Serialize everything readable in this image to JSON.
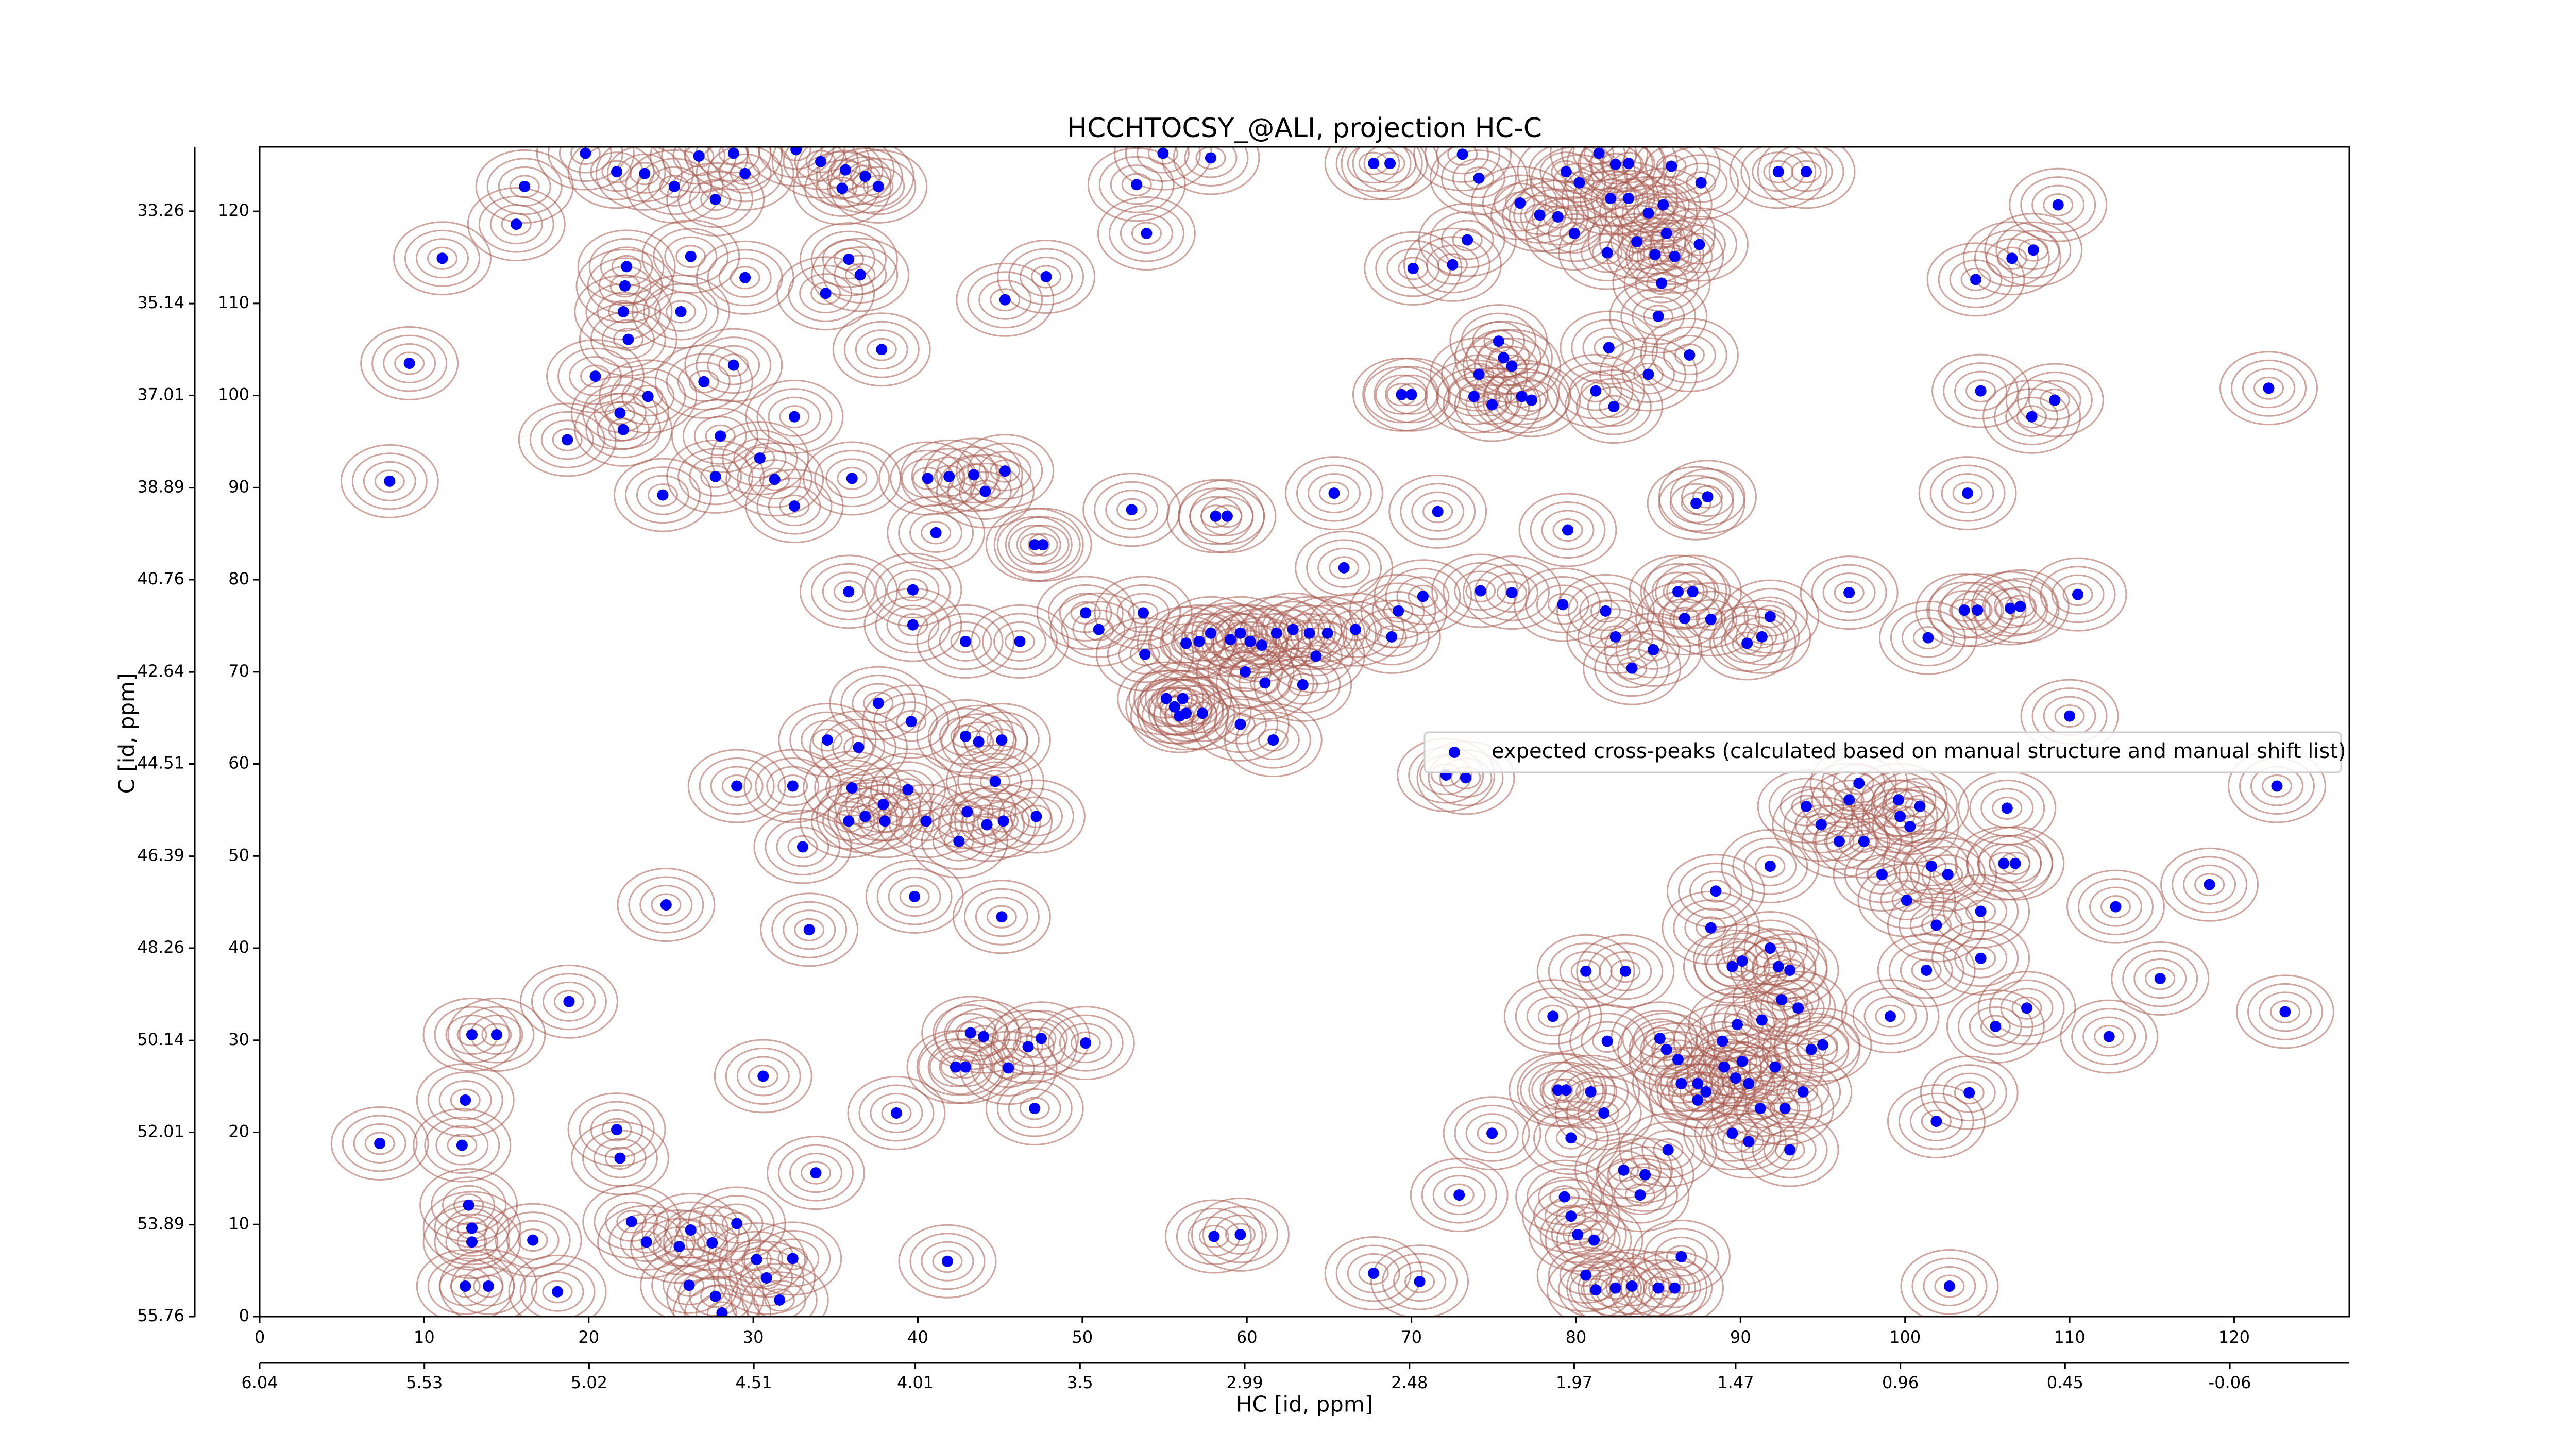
{
  "chart_data": {
    "type": "scatter",
    "title": "HCCHTOCSY_@ALI, projection HC-C",
    "xlabel": "HC [id, ppm]",
    "ylabel": "C [id, ppm]",
    "xlim": [
      0,
      127
    ],
    "ylim": [
      0,
      127
    ],
    "xticks": [
      0,
      10,
      20,
      30,
      40,
      50,
      60,
      70,
      80,
      90,
      100,
      110,
      120
    ],
    "yticks": [
      0,
      10,
      20,
      30,
      40,
      50,
      60,
      70,
      80,
      90,
      100,
      110,
      120
    ],
    "x2lim": [
      6.04,
      -0.43
    ],
    "x2ticks": [
      6.04,
      5.53,
      5.02,
      4.51,
      4.01,
      3.5,
      2.99,
      2.48,
      1.97,
      1.47,
      0.96,
      0.45,
      -0.06
    ],
    "y2lim": [
      55.76,
      31.95
    ],
    "y2ticks": [
      55.76,
      53.89,
      52.01,
      50.14,
      48.26,
      46.39,
      44.51,
      42.64,
      40.76,
      38.89,
      37.01,
      35.14,
      33.26
    ],
    "legend": "center right",
    "contour_color": "#a85a4e",
    "series": [
      {
        "name": "expected cross-peaks (calculated based on manual structure and manual shift list)",
        "color": "#0000ff",
        "x": [
          16.1,
          15.6,
          11.1,
          9.1,
          7.9,
          19.8,
          21.7,
          23.4,
          25.2,
          26.7,
          28.8,
          27.7,
          29.5,
          32.6,
          34.1,
          35.4,
          36.8,
          37.6,
          35.6,
          22.3,
          22.2,
          22.1,
          26.2,
          29.5,
          25.6,
          34.4,
          35.8,
          36.5,
          22.4,
          45.3,
          47.8,
          37.8,
          28.8,
          27.0,
          20.4,
          21.9,
          22.1,
          18.7,
          23.6,
          28.0,
          30.4,
          27.7,
          24.5,
          32.5,
          32.5,
          31.3,
          36.0,
          40.6,
          41.9,
          43.4,
          45.3,
          44.1,
          41.1,
          47.1,
          47.6,
          35.8,
          39.7,
          53.3,
          53.9,
          54.9,
          57.8,
          67.7,
          68.7,
          73.1,
          74.1,
          70.1,
          72.5,
          73.4,
          74.1,
          73.8,
          75.3,
          75.6,
          76.1,
          76.7,
          77.3,
          74.9,
          70.0,
          69.4,
          76.6,
          77.8,
          78.9,
          79.4,
          80.2,
          79.9,
          81.9,
          83.7,
          84.4,
          85.3,
          85.8,
          81.4,
          82.1,
          83.2,
          82.4,
          83.2,
          84.8,
          85.5,
          85.2,
          85.0,
          87.5,
          86.0,
          82.0,
          84.4,
          86.9,
          81.2,
          82.3,
          87.6,
          92.3,
          94.0,
          109.3,
          107.8,
          106.5,
          104.3,
          104.6,
          107.7,
          109.1,
          122.1,
          103.8,
          58.1,
          58.8,
          53.0,
          65.3,
          71.6,
          79.5,
          79.2,
          76.1,
          74.2,
          81.8,
          82.4,
          83.4,
          84.7,
          86.2,
          87.1,
          87.3,
          88.0,
          86.6,
          88.2,
          90.4,
          91.3,
          91.8,
          96.6,
          101.4,
          103.6,
          104.4,
          106.4,
          107.0,
          110.5,
          110.0,
          50.2,
          51.0,
          53.7,
          53.8,
          56.3,
          57.1,
          57.8,
          59.0,
          59.6,
          60.2,
          60.9,
          61.8,
          62.8,
          63.8,
          64.9,
          64.2,
          59.9,
          61.1,
          63.4,
          55.1,
          55.6,
          56.1,
          56.3,
          57.3,
          55.9,
          59.6,
          61.6,
          39.7,
          42.9,
          46.2,
          66.6,
          68.8,
          65.9,
          69.2,
          70.7,
          37.6,
          39.6,
          42.9,
          43.7,
          45.1,
          34.5,
          36.4,
          29.0,
          32.4,
          36.0,
          44.7,
          39.4,
          37.9,
          35.8,
          38.0,
          36.8,
          40.5,
          43.0,
          44.2,
          45.2,
          47.2,
          42.5,
          33.0,
          39.8,
          45.1,
          33.4,
          24.7,
          18.8,
          12.9,
          14.4,
          12.5,
          12.3,
          7.3,
          21.7,
          21.9,
          30.6,
          33.8,
          12.7,
          12.9,
          12.9,
          16.6,
          12.5,
          13.9,
          18.1,
          22.6,
          23.5,
          25.5,
          26.2,
          27.5,
          29.0,
          30.2,
          30.8,
          32.4,
          26.1,
          27.7,
          28.1,
          31.6,
          41.8,
          38.7,
          43.2,
          44.0,
          42.3,
          42.9,
          45.5,
          46.7,
          47.5,
          50.2,
          47.1,
          58.0,
          59.6,
          67.7,
          70.5,
          73.3,
          72.1,
          97.2,
          122.6,
          94.0,
          94.9,
          96.6,
          99.6,
          99.7,
          100.3,
          100.9,
          101.6,
          102.6,
          98.6,
          100.1,
          101.9,
          104.6,
          106.0,
          106.7,
          106.2,
          91.8,
          96.0,
          97.5,
          112.8,
          118.5,
          88.5,
          88.2,
          89.5,
          90.1,
          92.3,
          93.0,
          91.8,
          92.5,
          93.5,
          91.3,
          89.8,
          95.0,
          94.3,
          88.9,
          89.0,
          86.2,
          85.5,
          87.4,
          87.9,
          89.7,
          90.5,
          91.2,
          92.7,
          93.8,
          90.1,
          92.1,
          87.4,
          86.4,
          99.1,
          101.3,
          104.6,
          105.5,
          107.4,
          103.9,
          101.9,
          112.4,
          115.5,
          123.1,
          80.6,
          83.0,
          78.6,
          81.9,
          85.1,
          78.9,
          79.4,
          80.9,
          81.7,
          79.7,
          74.9,
          82.9,
          83.9,
          84.2,
          79.3,
          79.7,
          80.1,
          81.1,
          80.6,
          81.2,
          82.4,
          83.4,
          85.0,
          86.0,
          86.4,
          102.7,
          72.9,
          85.6,
          89.5,
          90.5,
          93.0
        ],
        "values": [
          122.7,
          118.6,
          114.9,
          103.5,
          90.7,
          126.3,
          124.3,
          124.1,
          122.7,
          126,
          126.3,
          121.3,
          124.1,
          126.7,
          125.4,
          122.5,
          123.8,
          122.7,
          124.5,
          114,
          111.9,
          109.1,
          115.1,
          112.8,
          109.1,
          111.1,
          114.8,
          113.1,
          106.1,
          110.4,
          112.9,
          105,
          103.3,
          101.5,
          102.1,
          98.1,
          96.3,
          95.2,
          99.9,
          95.6,
          93.2,
          91.2,
          89.2,
          97.7,
          88.0,
          90.9,
          91.0,
          91.0,
          91.2,
          91.4,
          91.8,
          89.6,
          85.1,
          83.8,
          83.8,
          78.7,
          78.9,
          122.9,
          117.6,
          126.3,
          125.8,
          125.2,
          125.2,
          126.2,
          123.6,
          113.8,
          114.2,
          116.9,
          102.3,
          99.9,
          105.9,
          104.1,
          103.2,
          99.9,
          99.5,
          99.0,
          100.1,
          100.1,
          120.9,
          119.6,
          119.4,
          124.3,
          123.1,
          117.6,
          115.5,
          116.7,
          119.8,
          120.7,
          124.9,
          126.3,
          121.4,
          121.4,
          125.1,
          125.2,
          115.3,
          117.6,
          112.2,
          108.6,
          116.4,
          115.1,
          105.2,
          102.3,
          104.4,
          100.5,
          98.8,
          123.1,
          124.3,
          124.3,
          120.7,
          115.8,
          114.9,
          112.6,
          100.5,
          97.7,
          99.5,
          100.8,
          89.4,
          86.9,
          86.9,
          87.6,
          89.4,
          87.4,
          85.4,
          77.3,
          78.6,
          78.8,
          76.6,
          73.8,
          70.4,
          72.4,
          78.7,
          78.7,
          88.3,
          89.0,
          75.8,
          75.7,
          73.1,
          73.8,
          76.0,
          78.6,
          73.7,
          76.7,
          76.7,
          76.9,
          77.1,
          78.4,
          65.2,
          76.4,
          74.6,
          76.4,
          71.9,
          73.1,
          73.3,
          74.2,
          73.5,
          74.2,
          73.3,
          72.9,
          74.2,
          74.6,
          74.2,
          74.2,
          71.7,
          70.0,
          68.8,
          68.6,
          67.1,
          66.2,
          67.1,
          65.5,
          65.5,
          65.2,
          64.3,
          62.6,
          75.1,
          73.3,
          73.3,
          74.6,
          73.8,
          81.3,
          76.6,
          78.2,
          66.6,
          64.6,
          63.0,
          62.4,
          62.6,
          62.6,
          61.8,
          57.6,
          57.6,
          57.4,
          58.1,
          57.2,
          55.6,
          53.8,
          53.8,
          54.3,
          53.8,
          54.8,
          53.4,
          53.8,
          54.3,
          51.6,
          51.0,
          45.6,
          43.4,
          42.0,
          44.7,
          34.2,
          30.6,
          30.6,
          23.5,
          18.6,
          18.8,
          20.3,
          17.2,
          26.1,
          15.6,
          12.1,
          9.6,
          8.1,
          8.3,
          3.3,
          3.3,
          2.7,
          10.3,
          8.1,
          7.6,
          9.4,
          8.0,
          10.1,
          6.2,
          4.2,
          6.3,
          3.4,
          2.2,
          0.4,
          1.8,
          6.0,
          22.1,
          30.8,
          30.4,
          27.1,
          27.1,
          27.0,
          29.3,
          30.2,
          29.7,
          22.6,
          8.7,
          8.9,
          4.7,
          3.8,
          58.5,
          58.8,
          57.9,
          57.6,
          55.4,
          53.4,
          56.1,
          56.1,
          54.3,
          53.2,
          55.4,
          48.9,
          48.0,
          48.0,
          45.2,
          42.5,
          44.0,
          49.2,
          49.2,
          55.2,
          48.9,
          51.6,
          51.6,
          44.5,
          46.9,
          46.2,
          42.2,
          38.0,
          38.6,
          38.0,
          37.6,
          40.0,
          34.4,
          33.5,
          32.2,
          31.7,
          29.5,
          29.0,
          29.9,
          27.1,
          27.9,
          29.0,
          25.3,
          24.4,
          25.9,
          25.3,
          22.6,
          22.6,
          24.4,
          27.7,
          27.1,
          23.5,
          25.3,
          32.6,
          37.6,
          38.9,
          31.5,
          33.5,
          24.3,
          21.2,
          30.4,
          36.7,
          33.1,
          37.5,
          37.5,
          32.6,
          29.9,
          30.2,
          24.6,
          24.6,
          24.4,
          22.1,
          19.4,
          19.9,
          15.9,
          13.2,
          15.4,
          13.0,
          10.9,
          8.9,
          8.3,
          4.5,
          2.9,
          3.1,
          3.3,
          3.1,
          3.1,
          6.5,
          3.3,
          13.2,
          18.1,
          19.9,
          19.0,
          18.1
        ]
      }
    ]
  }
}
